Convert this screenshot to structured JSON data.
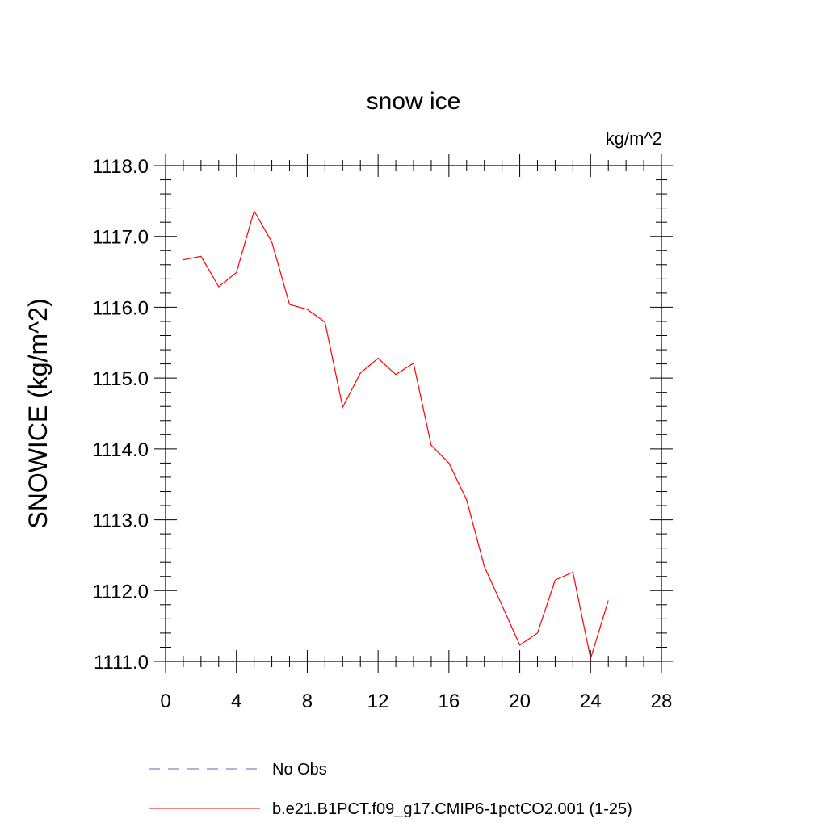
{
  "chart_data": {
    "type": "line",
    "title": "snow ice",
    "units_label": "kg/m^2",
    "ylabel": "SNOWICE  (kg/m^2)",
    "xlabel": "",
    "xlim": [
      0,
      28
    ],
    "ylim": [
      1111.0,
      1118.0
    ],
    "xticks": [
      0,
      4,
      8,
      12,
      16,
      20,
      24,
      28
    ],
    "xtick_labels": [
      "0",
      "4",
      "8",
      "12",
      "16",
      "20",
      "24",
      "28"
    ],
    "yticks": [
      1111.0,
      1112.0,
      1113.0,
      1114.0,
      1115.0,
      1116.0,
      1117.0,
      1118.0
    ],
    "ytick_labels": [
      "1111.0",
      "1112.0",
      "1113.0",
      "1114.0",
      "1115.0",
      "1116.0",
      "1117.0",
      "1118.0"
    ],
    "grid": false,
    "legend_position": "bottom",
    "series": [
      {
        "name": "b.e21.B1PCT.f09_g17.CMIP6-1pctCO2.001 (1-25)",
        "color": "#ff0000",
        "dash": "solid",
        "x": [
          1,
          2,
          3,
          4,
          5,
          6,
          7,
          8,
          9,
          10,
          11,
          12,
          13,
          14,
          15,
          16,
          17,
          18,
          19,
          20,
          21,
          22,
          23,
          24,
          25
        ],
        "y": [
          1116.67,
          1116.72,
          1116.29,
          1116.49,
          1117.36,
          1116.92,
          1116.04,
          1115.97,
          1115.79,
          1114.59,
          1115.07,
          1115.28,
          1115.05,
          1115.21,
          1114.05,
          1113.8,
          1113.28,
          1112.34,
          1111.79,
          1111.23,
          1111.4,
          1112.15,
          1112.26,
          1111.04,
          1111.86
        ]
      }
    ],
    "legend": [
      {
        "label": "No Obs",
        "color": "#6b5fbf",
        "dash": "dashed"
      },
      {
        "label": "b.e21.B1PCT.f09_g17.CMIP6-1pctCO2.001 (1-25)",
        "color": "#ff0000",
        "dash": "solid"
      }
    ]
  }
}
